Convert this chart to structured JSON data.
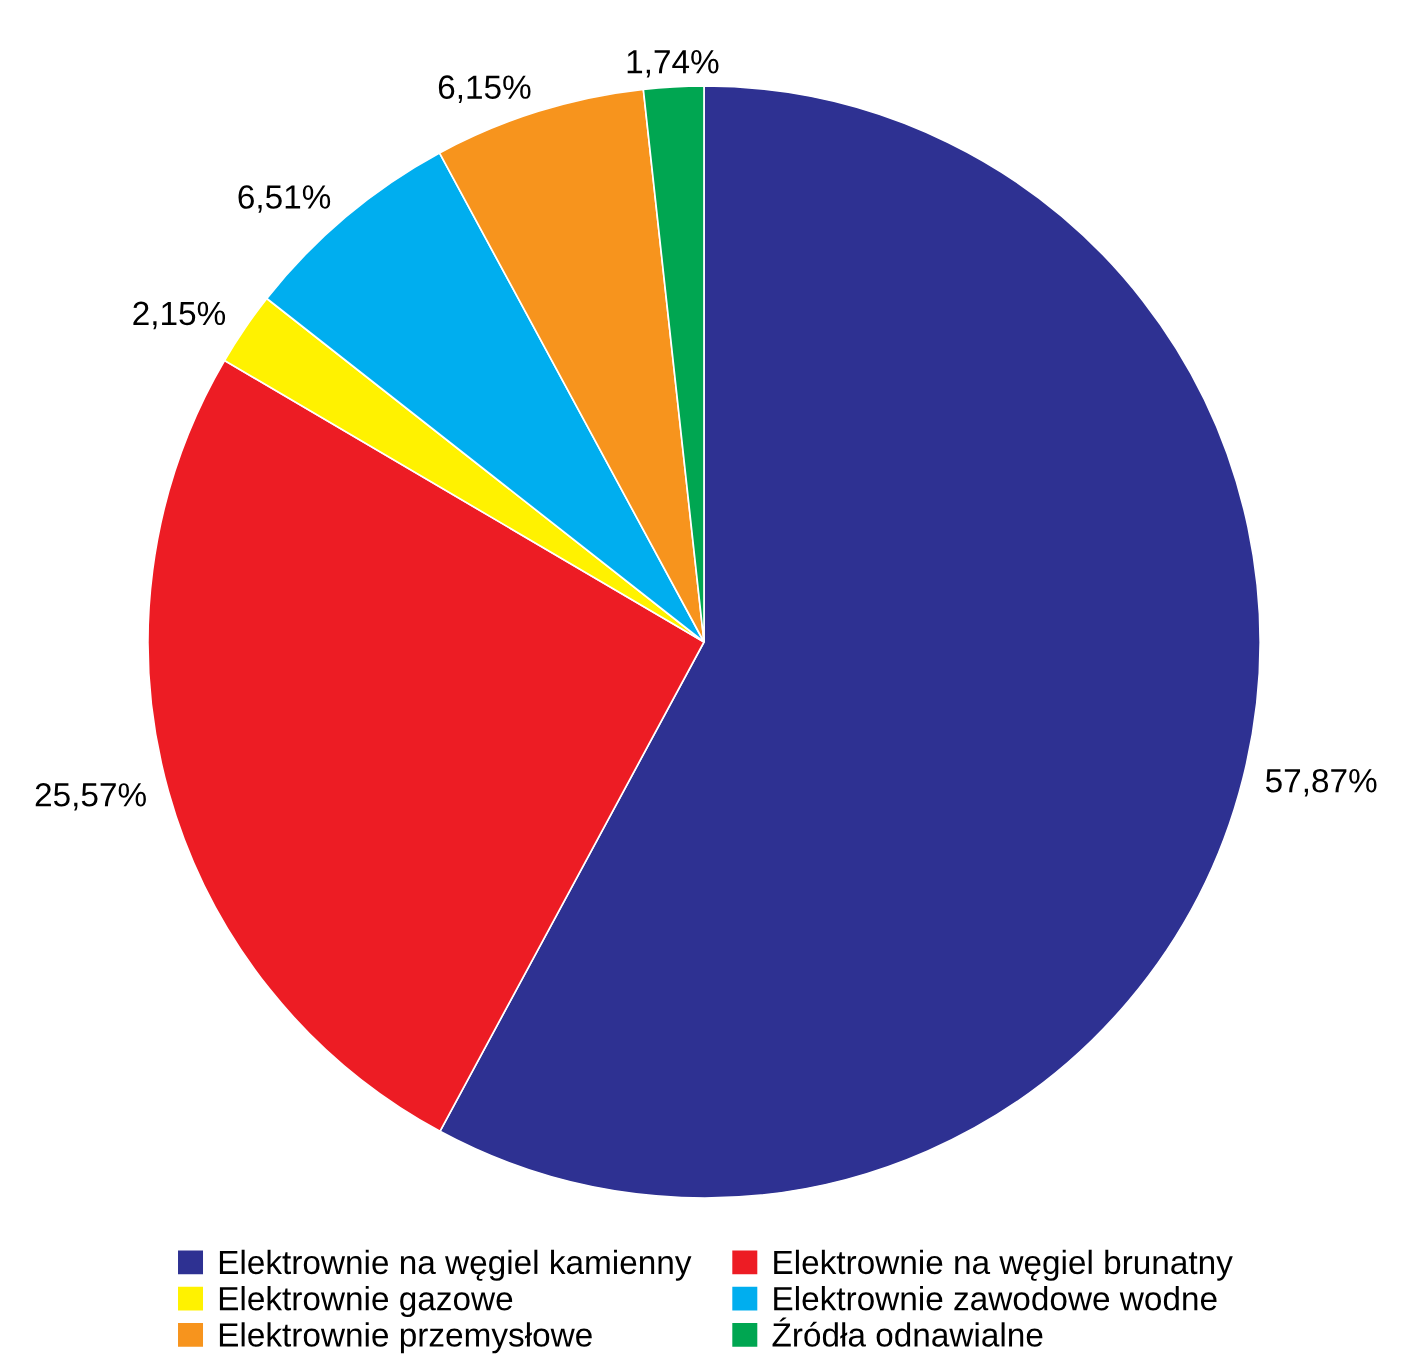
{
  "chart_data": {
    "type": "pie",
    "categories": [
      "Elektrownie na węgiel kamienny",
      "Elektrownie na węgiel brunatny",
      "Elektrownie gazowe",
      "Elektrownie zawodowe wodne",
      "Elektrownie przemysłowe",
      "Źródła odnawialne"
    ],
    "values": [
      57.87,
      25.57,
      2.15,
      6.51,
      6.15,
      1.74
    ],
    "colors": [
      "#2e3192",
      "#ed1c24",
      "#fff200",
      "#00aeef",
      "#f7941d",
      "#00a651"
    ],
    "value_labels": [
      "57,87%",
      "25,57%",
      "2,15%",
      "6,51%",
      "6,15%",
      "1,74%"
    ],
    "legend": "bottom"
  }
}
